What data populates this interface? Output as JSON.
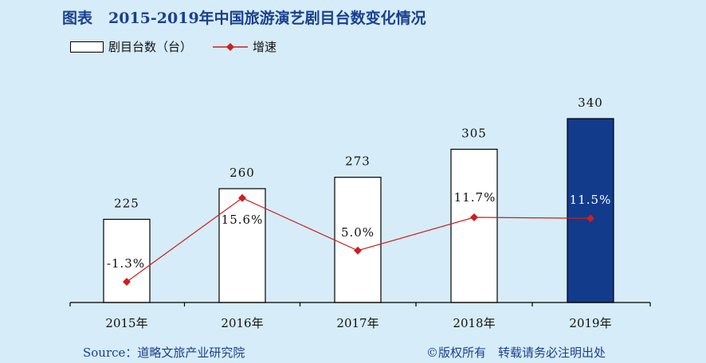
{
  "title": {
    "prefix": "图表",
    "text": "2015-2019年中国旅游演艺剧目台数变化情况"
  },
  "legend": {
    "bars": "剧目台数（台）",
    "line": "增速"
  },
  "footer": {
    "source": "Source：道略文旅产业研究院",
    "copyright": "©版权所有　转载请务必注明出处"
  },
  "colors": {
    "line": "#cc1f1f",
    "highlight_bar": "#123b8c",
    "bar": "#ffffff",
    "background": "#d6ecf8",
    "title": "#1a3f8f"
  },
  "chart_data": {
    "type": "bar",
    "categories": [
      "2015年",
      "2016年",
      "2017年",
      "2018年",
      "2019年"
    ],
    "series": [
      {
        "name": "剧目台数（台）",
        "type": "bar",
        "values": [
          225,
          260,
          273,
          305,
          340
        ],
        "labels": [
          "225",
          "260",
          "273",
          "305",
          "340"
        ]
      },
      {
        "name": "增速",
        "type": "line",
        "values": [
          -1.3,
          15.6,
          5.0,
          11.7,
          11.5
        ],
        "labels": [
          "-1.3%",
          "15.6%",
          "5.0%",
          "11.7%",
          "11.5%"
        ]
      }
    ],
    "highlighted_category": "2019年",
    "legend_position": "top-left",
    "grid": false
  }
}
